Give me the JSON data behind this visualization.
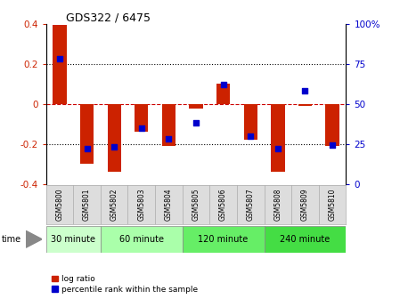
{
  "title": "GDS322 / 6475",
  "samples": [
    "GSM5800",
    "GSM5801",
    "GSM5802",
    "GSM5803",
    "GSM5804",
    "GSM5805",
    "GSM5806",
    "GSM5807",
    "GSM5808",
    "GSM5809",
    "GSM5810"
  ],
  "log_ratio": [
    0.395,
    -0.3,
    -0.34,
    -0.14,
    -0.21,
    -0.025,
    0.1,
    -0.18,
    -0.34,
    -0.01,
    -0.21
  ],
  "percentile": [
    78,
    22,
    23,
    35,
    28,
    38,
    62,
    30,
    22,
    58,
    24
  ],
  "bar_color": "#cc2200",
  "dot_color": "#0000cc",
  "ylim": [
    -0.4,
    0.4
  ],
  "y2lim": [
    0,
    100
  ],
  "yticks": [
    -0.4,
    -0.2,
    0.0,
    0.2,
    0.4
  ],
  "y2ticks": [
    0,
    25,
    50,
    75,
    100
  ],
  "ytick_labels": [
    "-0.4",
    "-0.2",
    "0",
    "0.2",
    "0.4"
  ],
  "y2tick_labels": [
    "0",
    "25",
    "50",
    "75",
    "100%"
  ],
  "hlines": [
    -0.2,
    0.0,
    0.2
  ],
  "hline_styles": [
    "dotted",
    "dashed",
    "dotted"
  ],
  "hline_colors": [
    "black",
    "#cc0000",
    "black"
  ],
  "groups": [
    {
      "label": "30 minute",
      "start": 0,
      "end": 1,
      "color": "#ccffcc"
    },
    {
      "label": "60 minute",
      "start": 2,
      "end": 4,
      "color": "#aaffaa"
    },
    {
      "label": "120 minute",
      "start": 5,
      "end": 7,
      "color": "#66ee66"
    },
    {
      "label": "240 minute",
      "start": 8,
      "end": 10,
      "color": "#44dd44"
    }
  ],
  "time_label": "time",
  "legend_log": "log ratio",
  "legend_pct": "percentile rank within the sample",
  "bg_color": "#ffffff",
  "plot_bg": "#ffffff",
  "bar_width": 0.5
}
